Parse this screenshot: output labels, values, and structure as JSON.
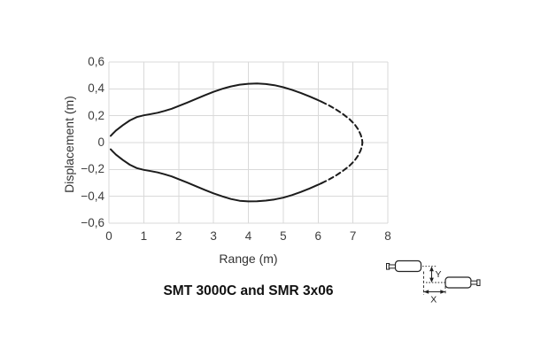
{
  "page": {
    "background": "#ffffff"
  },
  "chart_data": {
    "type": "line",
    "title": "SMT 3000C and SMR 3x06",
    "xlabel": "Range (m)",
    "ylabel": "Displacement (m)",
    "xlim": [
      0,
      8
    ],
    "ylim": [
      -0.6,
      0.6
    ],
    "grid": true,
    "legend": "none",
    "xticks": [
      "0",
      "1",
      "2",
      "3",
      "4",
      "5",
      "6",
      "7",
      "8"
    ],
    "xtick_values": [
      0,
      1,
      2,
      3,
      4,
      5,
      6,
      7,
      8
    ],
    "yticks": [
      "0,6",
      "0,4",
      "0,2",
      "0",
      "−0,2",
      "−0,4",
      "−0,6"
    ],
    "ytick_values": [
      0.6,
      0.4,
      0.2,
      0,
      -0.2,
      -0.4,
      -0.6
    ],
    "colors": {
      "curve": "#1c1c1c",
      "grid": "#d9d9d9",
      "text": "#3d3d3d"
    },
    "series": [
      {
        "name": "upper-envelope-solid",
        "line_style": "solid",
        "points": [
          [
            0.05,
            0.05
          ],
          [
            0.2,
            0.09
          ],
          [
            0.4,
            0.13
          ],
          [
            0.6,
            0.165
          ],
          [
            0.8,
            0.19
          ],
          [
            1.0,
            0.203
          ],
          [
            1.2,
            0.212
          ],
          [
            1.4,
            0.222
          ],
          [
            1.6,
            0.236
          ],
          [
            1.8,
            0.252
          ],
          [
            2.0,
            0.272
          ],
          [
            2.25,
            0.298
          ],
          [
            2.5,
            0.325
          ],
          [
            2.75,
            0.352
          ],
          [
            3.0,
            0.378
          ],
          [
            3.25,
            0.4
          ],
          [
            3.5,
            0.418
          ],
          [
            3.75,
            0.431
          ],
          [
            4.0,
            0.438
          ],
          [
            4.25,
            0.44
          ],
          [
            4.5,
            0.436
          ],
          [
            4.75,
            0.427
          ],
          [
            5.0,
            0.412
          ],
          [
            5.25,
            0.393
          ],
          [
            5.5,
            0.37
          ],
          [
            5.75,
            0.344
          ],
          [
            6.0,
            0.316
          ],
          [
            6.1,
            0.304
          ]
        ]
      },
      {
        "name": "upper-envelope-dashed",
        "line_style": "dashed",
        "points": [
          [
            6.1,
            0.304
          ],
          [
            6.3,
            0.278
          ],
          [
            6.5,
            0.249
          ],
          [
            6.7,
            0.215
          ],
          [
            6.9,
            0.175
          ],
          [
            7.05,
            0.135
          ],
          [
            7.15,
            0.098
          ],
          [
            7.22,
            0.06
          ],
          [
            7.26,
            0.025
          ],
          [
            7.27,
            0.0
          ]
        ]
      },
      {
        "name": "lower-envelope-solid",
        "line_style": "solid",
        "points": [
          [
            0.05,
            -0.05
          ],
          [
            0.2,
            -0.09
          ],
          [
            0.4,
            -0.13
          ],
          [
            0.6,
            -0.165
          ],
          [
            0.8,
            -0.19
          ],
          [
            1.0,
            -0.203
          ],
          [
            1.2,
            -0.212
          ],
          [
            1.4,
            -0.222
          ],
          [
            1.6,
            -0.236
          ],
          [
            1.8,
            -0.252
          ],
          [
            2.0,
            -0.272
          ],
          [
            2.25,
            -0.298
          ],
          [
            2.5,
            -0.325
          ],
          [
            2.75,
            -0.352
          ],
          [
            3.0,
            -0.378
          ],
          [
            3.25,
            -0.4
          ],
          [
            3.5,
            -0.42
          ],
          [
            3.75,
            -0.433
          ],
          [
            4.0,
            -0.438
          ],
          [
            4.25,
            -0.437
          ],
          [
            4.5,
            -0.432
          ],
          [
            4.75,
            -0.423
          ],
          [
            5.0,
            -0.41
          ],
          [
            5.25,
            -0.391
          ],
          [
            5.5,
            -0.368
          ],
          [
            5.75,
            -0.342
          ],
          [
            6.0,
            -0.314
          ],
          [
            6.1,
            -0.302
          ]
        ]
      },
      {
        "name": "lower-envelope-dashed",
        "line_style": "dashed",
        "points": [
          [
            6.1,
            -0.302
          ],
          [
            6.3,
            -0.276
          ],
          [
            6.5,
            -0.247
          ],
          [
            6.7,
            -0.213
          ],
          [
            6.9,
            -0.173
          ],
          [
            7.05,
            -0.133
          ],
          [
            7.15,
            -0.096
          ],
          [
            7.22,
            -0.058
          ],
          [
            7.26,
            -0.025
          ],
          [
            7.27,
            0.0
          ]
        ]
      }
    ]
  },
  "inset": {
    "description": "two-transducer-offset-diagram",
    "x_label": "X",
    "y_label": "Y"
  }
}
